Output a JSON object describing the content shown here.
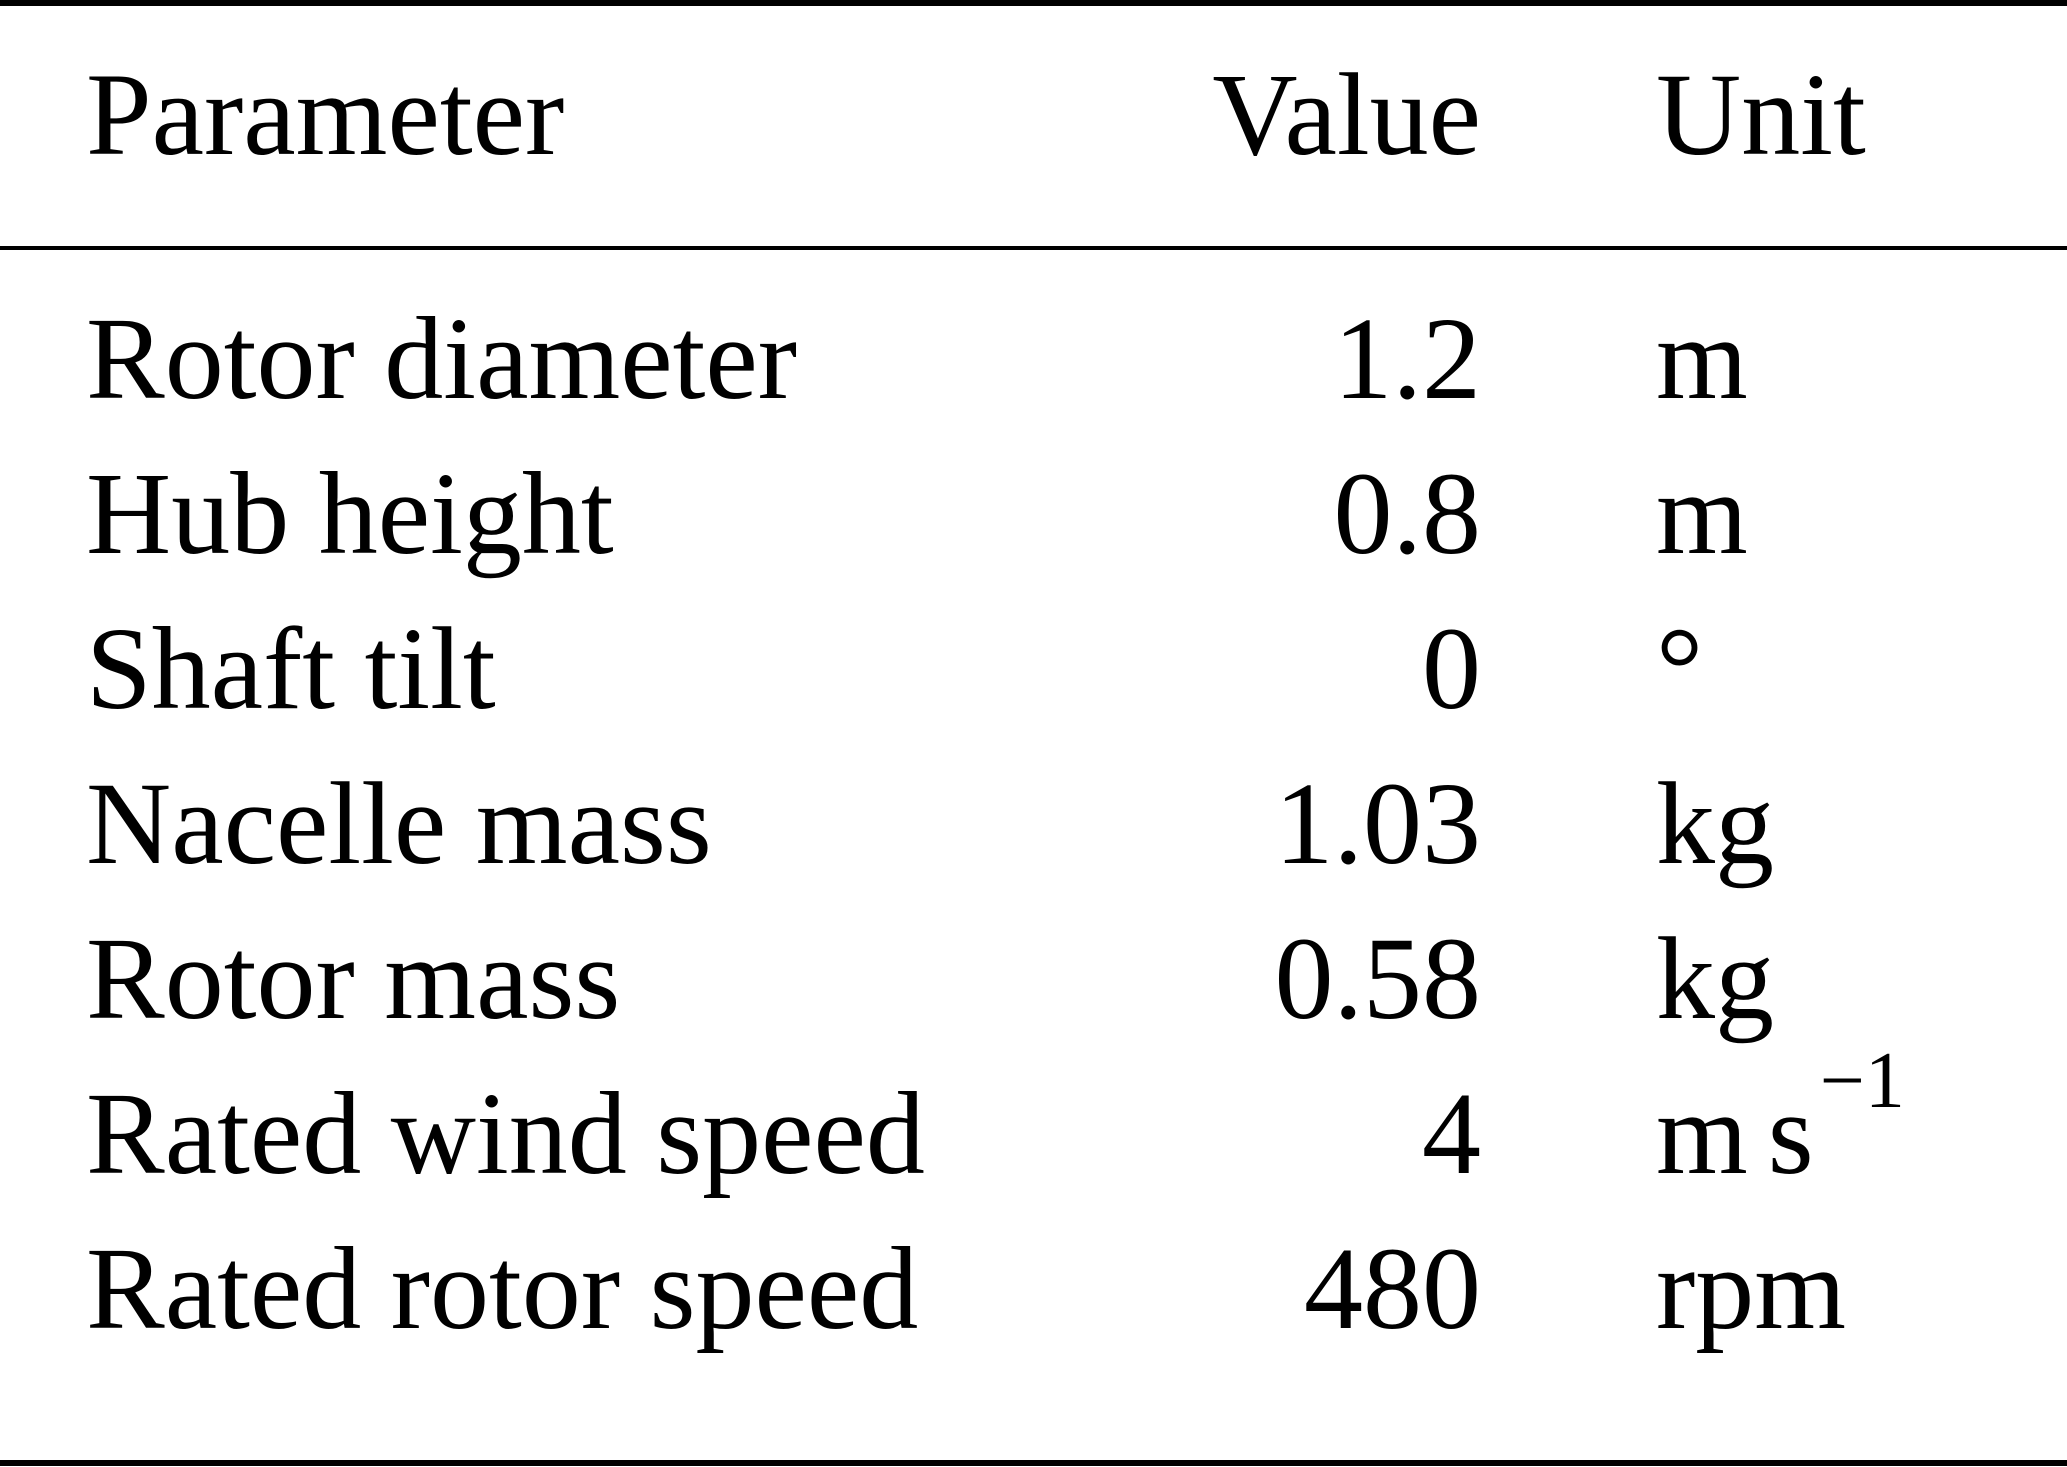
{
  "table": {
    "headers": {
      "parameter": "Parameter",
      "value": "Value",
      "unit": "Unit"
    },
    "rows": [
      {
        "parameter": "Rotor diameter",
        "value": "1.2",
        "unit": "m"
      },
      {
        "parameter": "Hub height",
        "value": "0.8",
        "unit": "m"
      },
      {
        "parameter": "Shaft tilt",
        "value": "0",
        "unit": "°"
      },
      {
        "parameter": "Nacelle mass",
        "value": "1.03",
        "unit": "kg"
      },
      {
        "parameter": "Rotor mass",
        "value": "0.58",
        "unit": "kg"
      },
      {
        "parameter": "Rated wind speed",
        "value": "4",
        "unit_base": "m",
        "unit_second": "s",
        "unit_exponent": "−1"
      },
      {
        "parameter": "Rated rotor speed",
        "value": "480",
        "unit": "rpm"
      }
    ]
  }
}
